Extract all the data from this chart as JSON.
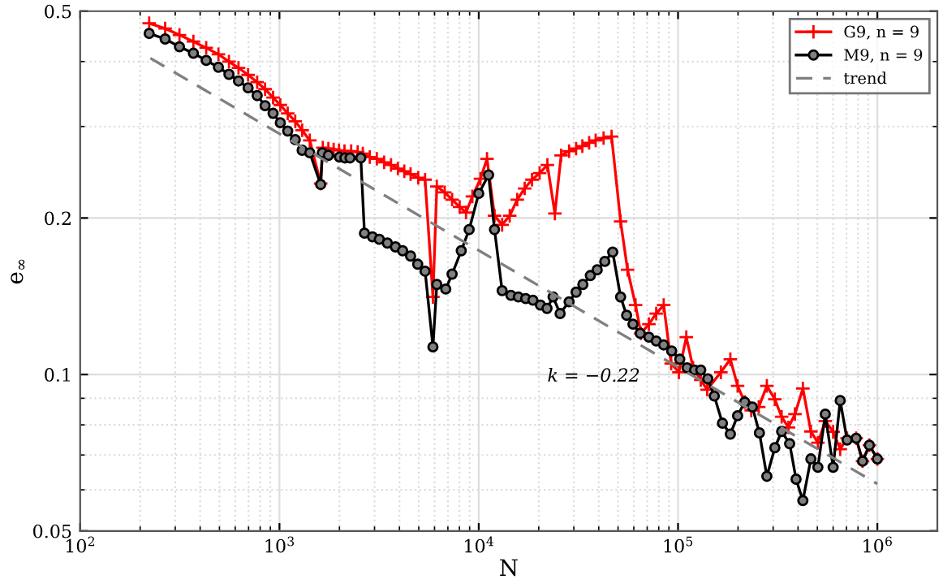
{
  "chart_data": {
    "type": "line",
    "xlabel": "N",
    "ylabel": "e$_{∞}$",
    "log": "xy",
    "grid": true,
    "legend": "top right",
    "xlim": [
      100,
      2000000
    ],
    "ylim": [
      0.05,
      0.5
    ],
    "xticks": [
      {
        "value": 100,
        "label": "10$^{2}$"
      },
      {
        "value": 1000,
        "label": "10$^{3}$"
      },
      {
        "value": 10000,
        "label": "10$^{4}$"
      },
      {
        "value": 100000,
        "label": "10$^{5}$"
      },
      {
        "value": 1000000,
        "label": "10$^{6}$"
      }
    ],
    "yticks": [
      0.05,
      0.1,
      0.2,
      0.5
    ],
    "annotations": [
      "k = −0.22"
    ],
    "series": [
      {
        "name": "G9, n = 9",
        "color": "#ff0000",
        "marker": "cross",
        "line_style": "solid",
        "x": [
          222,
          267,
          315,
          370,
          429,
          494,
          558,
          623,
          696,
          773,
          847,
          929,
          1010,
          1100,
          1200,
          1300,
          1420,
          1610,
          1650,
          1760,
          1870,
          1990,
          2120,
          2290,
          2470,
          2620,
          2840,
          3080,
          3350,
          3630,
          3930,
          4230,
          4550,
          4970,
          5380,
          5890,
          6160,
          6750,
          7350,
          8020,
          8630,
          9290,
          10200,
          11000,
          12000,
          13100,
          14300,
          15600,
          17000,
          18500,
          20200,
          22100,
          24100,
          25900,
          28400,
          30800,
          33100,
          35800,
          38600,
          42300,
          46400,
          51500,
          55800,
          61200,
          65100,
          71400,
          77700,
          84700,
          92400,
          101000,
          110000,
          119000,
          130000,
          140000,
          164000,
          183000,
          199000,
          216000,
          233000,
          254000,
          279000,
          306000,
          331000,
          358000,
          386000,
          423000,
          464000,
          503000,
          548000,
          600000,
          651000,
          705000,
          783000,
          843000,
          912000,
          1000000
        ],
        "values": [
          0.474,
          0.463,
          0.45,
          0.437,
          0.425,
          0.413,
          0.4,
          0.389,
          0.377,
          0.365,
          0.354,
          0.341,
          0.33,
          0.318,
          0.307,
          0.295,
          0.282,
          0.233,
          0.273,
          0.272,
          0.271,
          0.27,
          0.269,
          0.269,
          0.268,
          0.266,
          0.262,
          0.26,
          0.256,
          0.253,
          0.249,
          0.246,
          0.243,
          0.239,
          0.237,
          0.141,
          0.23,
          0.224,
          0.217,
          0.21,
          0.205,
          0.22,
          0.238,
          0.26,
          0.202,
          0.194,
          0.202,
          0.217,
          0.228,
          0.237,
          0.244,
          0.253,
          0.204,
          0.264,
          0.269,
          0.272,
          0.275,
          0.279,
          0.282,
          0.285,
          0.287,
          0.197,
          0.159,
          0.136,
          0.12,
          0.125,
          0.131,
          0.136,
          0.105,
          0.101,
          0.118,
          0.103,
          0.0976,
          0.0935,
          0.101,
          0.107,
          0.0951,
          0.0885,
          0.0853,
          0.0866,
          0.0951,
          0.0896,
          0.0829,
          0.0791,
          0.0839,
          0.094,
          0.0777,
          0.0739,
          0.0814,
          0.0776,
          0.0718,
          0.0754,
          0.0754,
          0.0681,
          0.0731,
          0.0688
        ]
      },
      {
        "name": "M9, n = 9",
        "color": "#000000",
        "marker": "circle",
        "line_style": "solid",
        "x": [
          222,
          267,
          315,
          370,
          429,
          494,
          558,
          623,
          696,
          773,
          847,
          929,
          1010,
          1100,
          1200,
          1300,
          1420,
          1610,
          1640,
          1760,
          2000,
          2130,
          2260,
          2560,
          2670,
          2930,
          3170,
          3480,
          3820,
          4150,
          4550,
          4940,
          5380,
          5890,
          6160,
          6830,
          7350,
          8170,
          8950,
          10000,
          11200,
          12000,
          13100,
          14500,
          15800,
          17200,
          18700,
          20400,
          22000,
          23600,
          25600,
          28400,
          30800,
          33300,
          36300,
          39300,
          42900,
          47000,
          51500,
          55200,
          59400,
          64600,
          71400,
          77700,
          84700,
          92900,
          102000,
          111000,
          121000,
          130000,
          141000,
          152000,
          167000,
          183000,
          199000,
          216000,
          236000,
          256000,
          279000,
          306000,
          331000,
          363000,
          391000,
          423000,
          464000,
          503000,
          548000,
          600000,
          651000,
          705000,
          783000,
          843000,
          912000,
          1000000
        ],
        "values": [
          0.453,
          0.442,
          0.427,
          0.415,
          0.402,
          0.39,
          0.378,
          0.367,
          0.356,
          0.344,
          0.329,
          0.318,
          0.305,
          0.294,
          0.283,
          0.27,
          0.267,
          0.232,
          0.267,
          0.264,
          0.262,
          0.261,
          0.261,
          0.261,
          0.187,
          0.184,
          0.182,
          0.179,
          0.176,
          0.173,
          0.169,
          0.163,
          0.158,
          0.113,
          0.149,
          0.146,
          0.156,
          0.173,
          0.19,
          0.223,
          0.242,
          0.19,
          0.145,
          0.142,
          0.141,
          0.14,
          0.139,
          0.136,
          0.134,
          0.141,
          0.131,
          0.138,
          0.144,
          0.149,
          0.155,
          0.159,
          0.165,
          0.172,
          0.141,
          0.13,
          0.125,
          0.12,
          0.118,
          0.116,
          0.114,
          0.111,
          0.107,
          0.103,
          0.102,
          0.102,
          0.0981,
          0.0909,
          0.0806,
          0.0768,
          0.0833,
          0.0885,
          0.0866,
          0.0772,
          0.0637,
          0.0723,
          0.0777,
          0.0736,
          0.0629,
          0.0572,
          0.0688,
          0.0663,
          0.0839,
          0.0663,
          0.0891,
          0.0748,
          0.0754,
          0.0681,
          0.0731,
          0.0688
        ]
      },
      {
        "name": "trend",
        "color": "#808080",
        "marker": "none",
        "line_style": "dashed",
        "x": [
          225,
          1000000
        ],
        "values": [
          0.406,
          0.0616
        ]
      }
    ]
  }
}
